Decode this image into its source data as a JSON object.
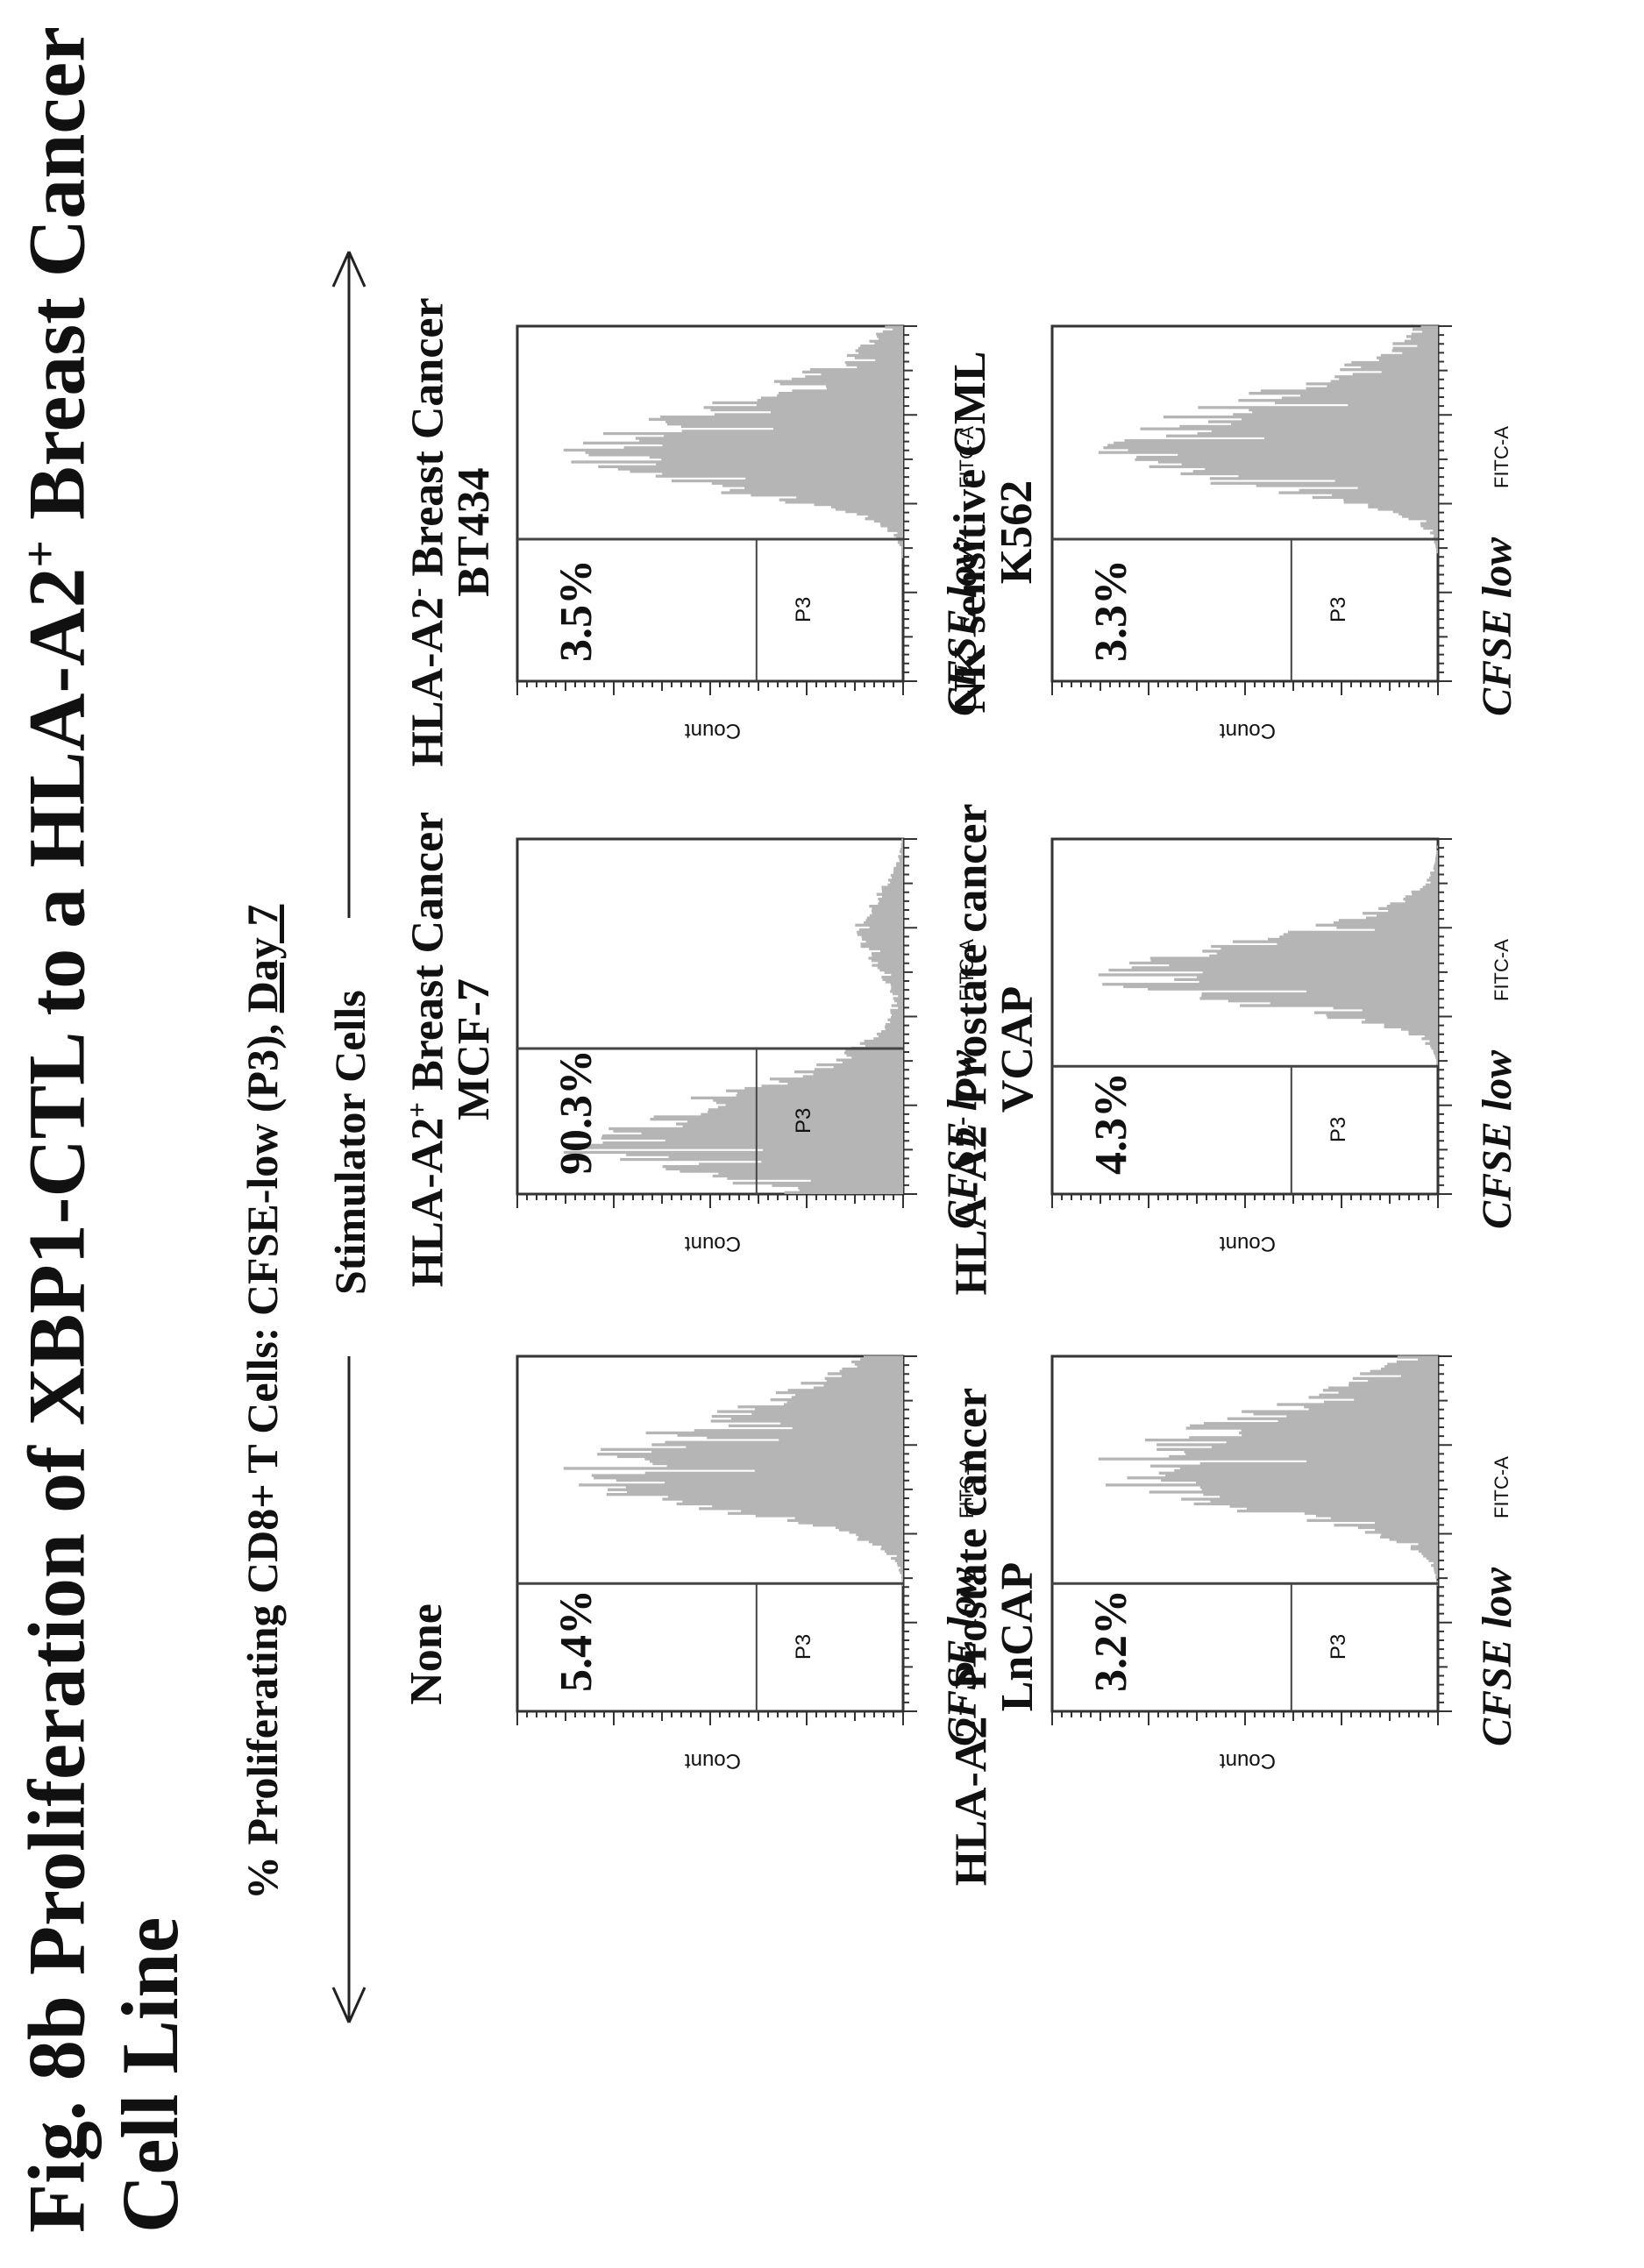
{
  "title_line1": "Fig. 8b  Proliferation of XBP1-CTL to a HLA-A2",
  "title_sup": "+",
  "title_line1_end": " Breast Cancer",
  "title_line2": "Cell Line",
  "subtitle_main": "% Proliferating CD8+ T Cells: CFSE-low (P3), ",
  "subtitle_day": "Day 7",
  "stimulator_label": "Stimulator Cells",
  "colors": {
    "histogram_fill": "#b5b5b5",
    "axis": "#333333",
    "text": "#111111"
  },
  "chart_data": [
    {
      "type": "histogram",
      "title_lines": [
        "None"
      ],
      "percent_label": "5.4%",
      "gate_label": "P3",
      "xlabel": "CFSE low",
      "xlabel_channel": "FITC-A",
      "ylabel": "Count",
      "gate_end_fraction": 0.36,
      "mode_fraction": 0.66,
      "width_fraction": 0.09,
      "skew_right": 1.9
    },
    {
      "type": "histogram",
      "title_lines": [
        "HLA-A2",
        "+",
        " Breast Cancer",
        "MCF-7"
      ],
      "percent_label": "90.3%",
      "gate_label": "P3",
      "xlabel": "CFSE low",
      "xlabel_channel": "FITC-A",
      "ylabel": "Count",
      "gate_end_fraction": 0.41,
      "mode_fraction": 0.13,
      "width_fraction": 0.09,
      "skew_right": 1.6,
      "secondary_mode_fraction": 0.74
    },
    {
      "type": "histogram",
      "title_lines": [
        "HLA-A2",
        "-",
        " Breast Cancer",
        "BT434"
      ],
      "percent_label": "3.5%",
      "gate_label": "P3",
      "xlabel": "CFSE low",
      "xlabel_channel": "FITC-A",
      "ylabel": "Count",
      "gate_end_fraction": 0.4,
      "mode_fraction": 0.62,
      "width_fraction": 0.08,
      "skew_right": 2.0
    },
    {
      "type": "histogram",
      "title_lines": [
        "HLA-A2",
        "+",
        " Prostate cancer",
        "LnCAP"
      ],
      "percent_label": "3.2%",
      "gate_label": "P3",
      "xlabel": "CFSE low",
      "xlabel_channel": "FITC-A",
      "ylabel": "Count",
      "gate_end_fraction": 0.36,
      "mode_fraction": 0.66,
      "width_fraction": 0.09,
      "skew_right": 1.9
    },
    {
      "type": "histogram",
      "title_lines": [
        "HLA-A2",
        "-",
        " Prostate cancer",
        "VCAP"
      ],
      "percent_label": "4.3%",
      "gate_label": "P3",
      "xlabel": "CFSE low",
      "xlabel_channel": "FITC-A",
      "ylabel": "Count",
      "gate_end_fraction": 0.36,
      "mode_fraction": 0.6,
      "width_fraction": 0.07,
      "skew_right": 1.6
    },
    {
      "type": "histogram",
      "title_lines": [
        "NK sensitive CML",
        "K562"
      ],
      "percent_label": "3.3%",
      "gate_label": "P3",
      "xlabel": "CFSE low",
      "xlabel_channel": "FITC-A",
      "ylabel": "Count",
      "gate_end_fraction": 0.4,
      "mode_fraction": 0.63,
      "width_fraction": 0.08,
      "skew_right": 2.0
    }
  ]
}
